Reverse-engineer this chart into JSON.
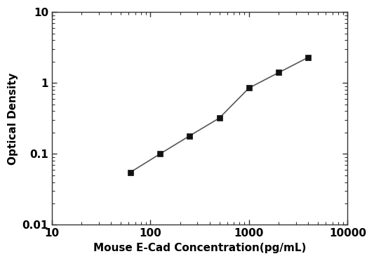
{
  "x_values": [
    62.5,
    125,
    250,
    500,
    1000,
    2000,
    4000
  ],
  "y_values": [
    0.055,
    0.1,
    0.18,
    0.32,
    0.85,
    1.4,
    2.3
  ],
  "xlabel": "Mouse E-Cad Concentration(pg/mL)",
  "ylabel": "Optical Density",
  "xlim": [
    10,
    10000
  ],
  "ylim": [
    0.01,
    10
  ],
  "xticks": [
    10,
    100,
    1000,
    10000
  ],
  "xtick_labels": [
    "10",
    "100",
    "1000",
    "10000"
  ],
  "yticks": [
    0.01,
    0.1,
    1,
    10
  ],
  "ytick_labels": [
    "0.01",
    "0.1",
    "1",
    "10"
  ],
  "line_color": "#555555",
  "marker_color": "#111111",
  "marker": "s",
  "marker_size": 6,
  "line_width": 1.2,
  "background_color": "#ffffff",
  "xlabel_fontsize": 11,
  "ylabel_fontsize": 11,
  "tick_fontsize": 11
}
